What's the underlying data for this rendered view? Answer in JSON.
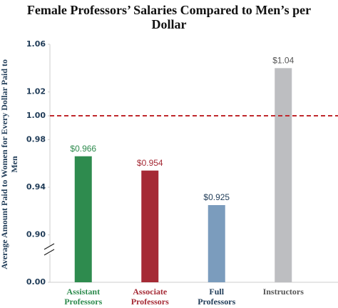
{
  "chart_data": {
    "type": "bar",
    "title": "Female Professors’ Salaries Compared to Men’s per Dollar",
    "y_label": "Average Amount Paid to Women for Every Dollar Paid to Men",
    "categories": [
      "Assistant Professors",
      "Associate Professors",
      "Full Professors",
      "Instructors"
    ],
    "values": [
      0.966,
      0.954,
      0.925,
      1.04
    ],
    "value_labels": [
      "$0.966",
      "$0.954",
      "$0.925",
      "$1.04"
    ],
    "colors": [
      "#2e8b4e",
      "#a52a35",
      "#7b9cbd",
      "#bdbec1"
    ],
    "label_colors": [
      "#2e8b4e",
      "#a52a35",
      "#1f3b57",
      "#555555"
    ],
    "category_colors": [
      "#2e8b4e",
      "#a52a35",
      "#1f3b57",
      "#555555"
    ],
    "ylim": [
      0,
      1.06
    ],
    "axis_break": [
      0,
      0.88
    ],
    "yticks": [
      {
        "value": 0,
        "label": "0.00"
      },
      {
        "value": 0.9,
        "label": "0.90"
      },
      0.94,
      0.98,
      {
        "value": 1.0,
        "label": "1.00"
      },
      1.02,
      1.06
    ],
    "reference_line": {
      "value": 1.0,
      "color": "#c0282d"
    }
  }
}
